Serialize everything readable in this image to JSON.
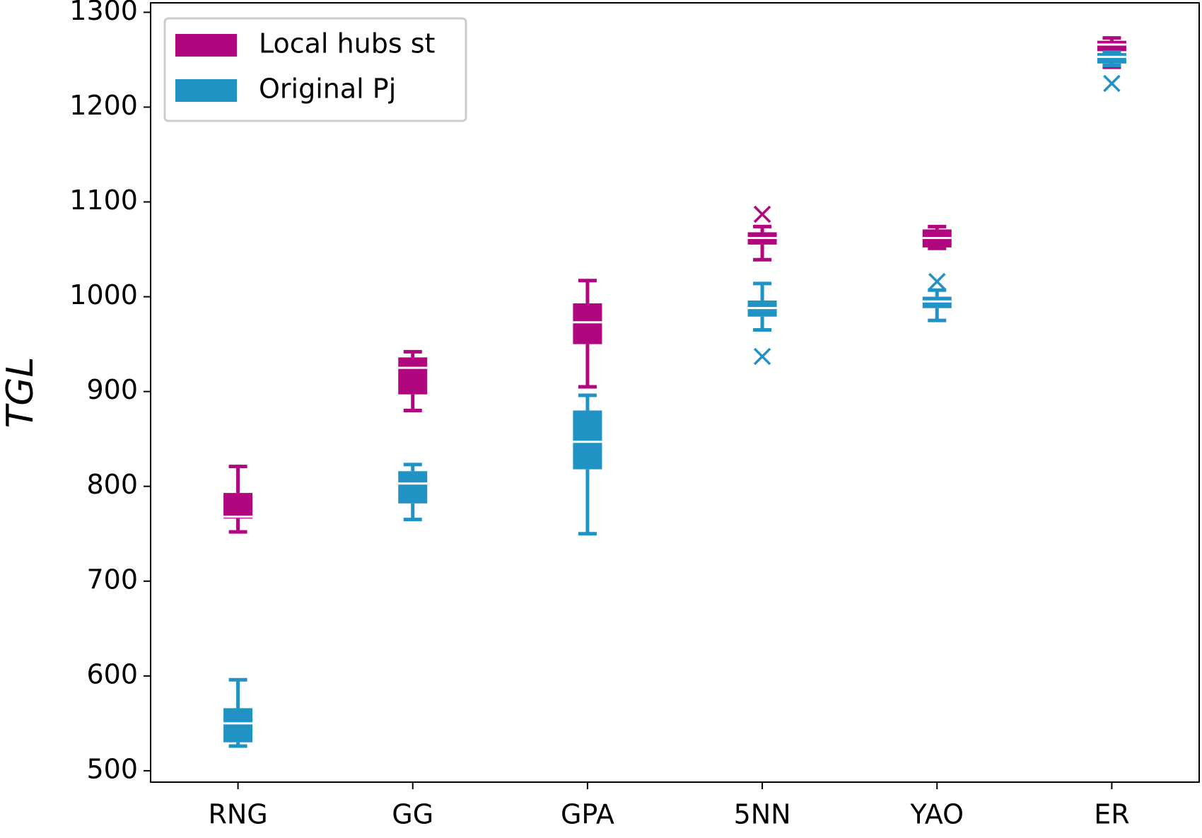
{
  "chart_data": {
    "type": "box",
    "ylabel": "TGL",
    "categories": [
      "RNG",
      "GG",
      "GPA",
      "5NN",
      "YAO",
      "ER"
    ],
    "ylim": [
      488,
      1310
    ],
    "yticks": [
      500,
      600,
      700,
      800,
      900,
      1000,
      1100,
      1200,
      1300
    ],
    "legend": "upper left",
    "series": [
      {
        "name": "Local hubs st",
        "color": "#b0077e",
        "boxes": [
          {
            "low": 752,
            "q1": 766,
            "median": 768,
            "q3": 793,
            "high": 821,
            "outliers": []
          },
          {
            "low": 880,
            "q1": 897,
            "median": 925,
            "q3": 936,
            "high": 942,
            "outliers": []
          },
          {
            "low": 905,
            "q1": 950,
            "median": 973,
            "q3": 993,
            "high": 1017,
            "outliers": []
          },
          {
            "low": 1039,
            "q1": 1055,
            "median": 1062,
            "q3": 1068,
            "high": 1074,
            "outliers": [
              1087
            ]
          },
          {
            "low": 1051,
            "q1": 1052,
            "median": 1062,
            "q3": 1071,
            "high": 1074,
            "outliers": []
          },
          {
            "low": 1242,
            "q1": 1259,
            "median": 1266,
            "q3": 1270,
            "high": 1273,
            "outliers": []
          }
        ]
      },
      {
        "name": "Original Pj",
        "color": "#2192c4",
        "boxes": [
          {
            "low": 526,
            "q1": 530,
            "median": 550,
            "q3": 566,
            "high": 596,
            "outliers": []
          },
          {
            "low": 765,
            "q1": 782,
            "median": 803,
            "q3": 816,
            "high": 823,
            "outliers": []
          },
          {
            "low": 750,
            "q1": 818,
            "median": 847,
            "q3": 880,
            "high": 896,
            "outliers": []
          },
          {
            "low": 965,
            "q1": 979,
            "median": 988,
            "q3": 996,
            "high": 1014,
            "outliers": [
              937
            ]
          },
          {
            "low": 975,
            "q1": 988,
            "median": 995,
            "q3": 1000,
            "high": 1007,
            "outliers": [
              1016
            ]
          },
          {
            "low": 1244,
            "q1": 1246,
            "median": 1253,
            "q3": 1257,
            "high": 1258,
            "outliers": [
              1225
            ]
          }
        ]
      }
    ]
  }
}
